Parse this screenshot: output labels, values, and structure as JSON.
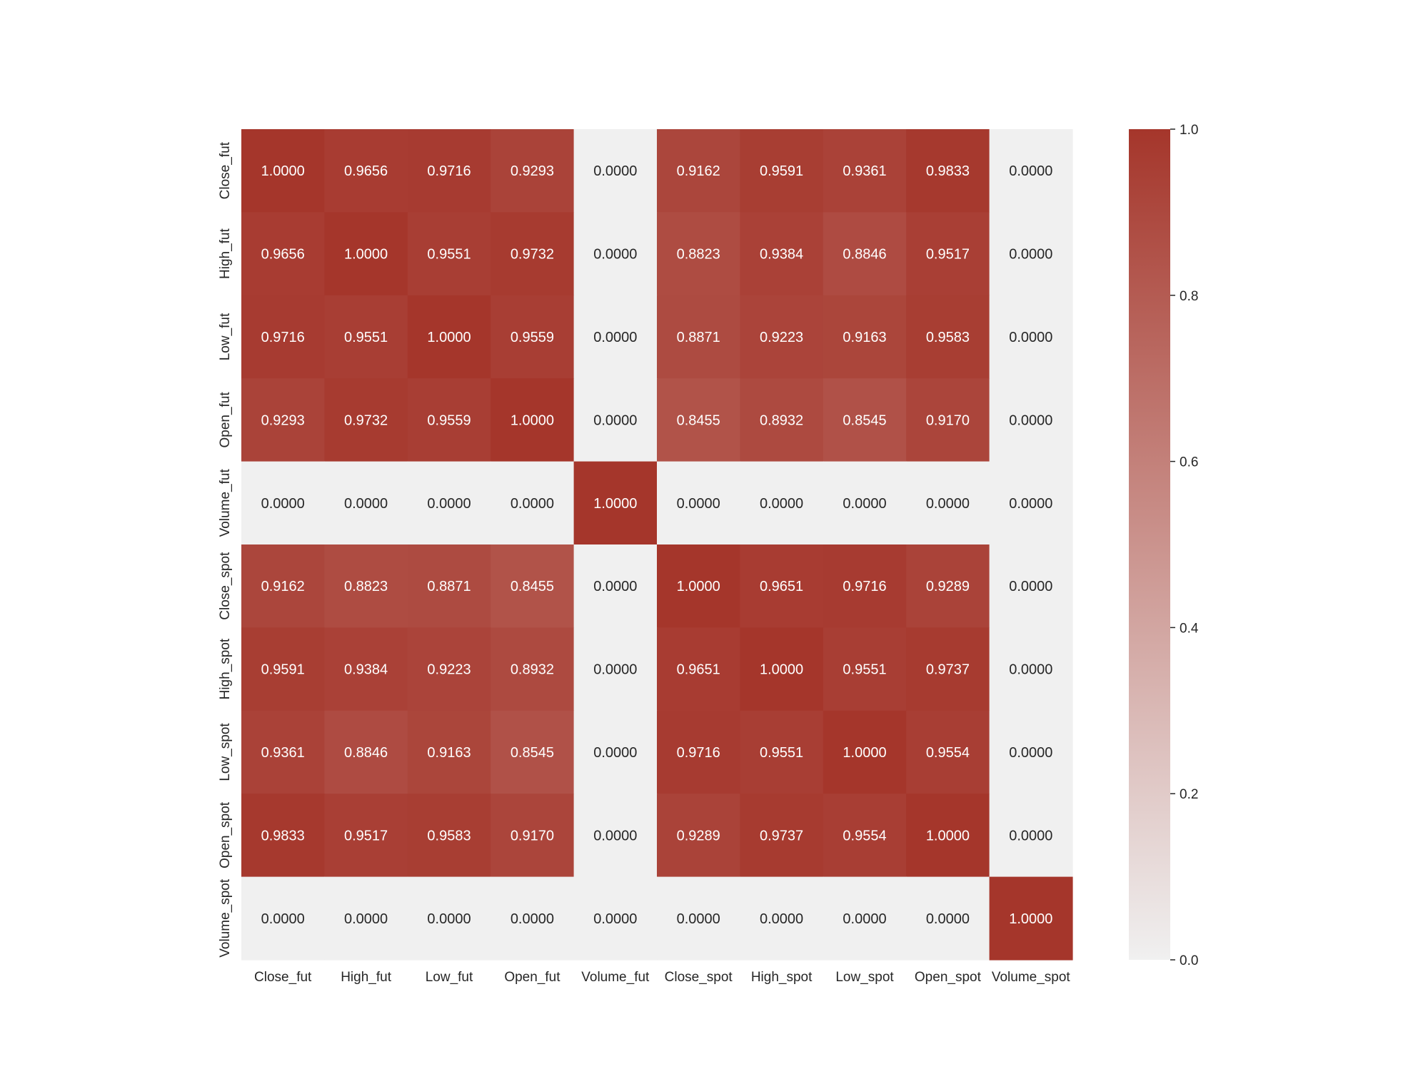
{
  "chart_data": {
    "type": "heatmap",
    "title": "",
    "xlabel": "",
    "ylabel": "",
    "x_categories": [
      "Close_fut",
      "High_fut",
      "Low_fut",
      "Open_fut",
      "Volume_fut",
      "Close_spot",
      "High_spot",
      "Low_spot",
      "Open_spot",
      "Volume_spot"
    ],
    "y_categories": [
      "Close_fut",
      "High_fut",
      "Low_fut",
      "Open_fut",
      "Volume_fut",
      "Close_spot",
      "High_spot",
      "Low_spot",
      "Open_spot",
      "Volume_spot"
    ],
    "values": [
      [
        1.0,
        0.9656,
        0.9716,
        0.9293,
        0.0,
        0.9162,
        0.9591,
        0.9361,
        0.9833,
        0.0
      ],
      [
        0.9656,
        1.0,
        0.9551,
        0.9732,
        0.0,
        0.8823,
        0.9384,
        0.8846,
        0.9517,
        0.0
      ],
      [
        0.9716,
        0.9551,
        1.0,
        0.9559,
        0.0,
        0.8871,
        0.9223,
        0.9163,
        0.9583,
        0.0
      ],
      [
        0.9293,
        0.9732,
        0.9559,
        1.0,
        0.0,
        0.8455,
        0.8932,
        0.8545,
        0.917,
        0.0
      ],
      [
        0.0,
        0.0,
        0.0,
        0.0,
        1.0,
        0.0,
        0.0,
        0.0,
        0.0,
        0.0
      ],
      [
        0.9162,
        0.8823,
        0.8871,
        0.8455,
        0.0,
        1.0,
        0.9651,
        0.9716,
        0.9289,
        0.0
      ],
      [
        0.9591,
        0.9384,
        0.9223,
        0.8932,
        0.0,
        0.9651,
        1.0,
        0.9551,
        0.9737,
        0.0
      ],
      [
        0.9361,
        0.8846,
        0.9163,
        0.8545,
        0.0,
        0.9716,
        0.9551,
        1.0,
        0.9554,
        0.0
      ],
      [
        0.9833,
        0.9517,
        0.9583,
        0.917,
        0.0,
        0.9289,
        0.9737,
        0.9554,
        1.0,
        0.0
      ],
      [
        0.0,
        0.0,
        0.0,
        0.0,
        0.0,
        0.0,
        0.0,
        0.0,
        0.0,
        1.0
      ]
    ],
    "value_format_decimals": 4,
    "colorbar": {
      "range": [
        0.0,
        1.0
      ],
      "ticks": [
        0.0,
        0.2,
        0.4,
        0.6,
        0.8,
        1.0
      ],
      "tick_labels": [
        "0.0",
        "0.2",
        "0.4",
        "0.6",
        "0.8",
        "1.0"
      ]
    },
    "colormap": {
      "low_color": "#f0f0f0",
      "high_color": "#a5362b",
      "dark_text_color": "#262626",
      "light_text_color": "#ffffff"
    }
  }
}
